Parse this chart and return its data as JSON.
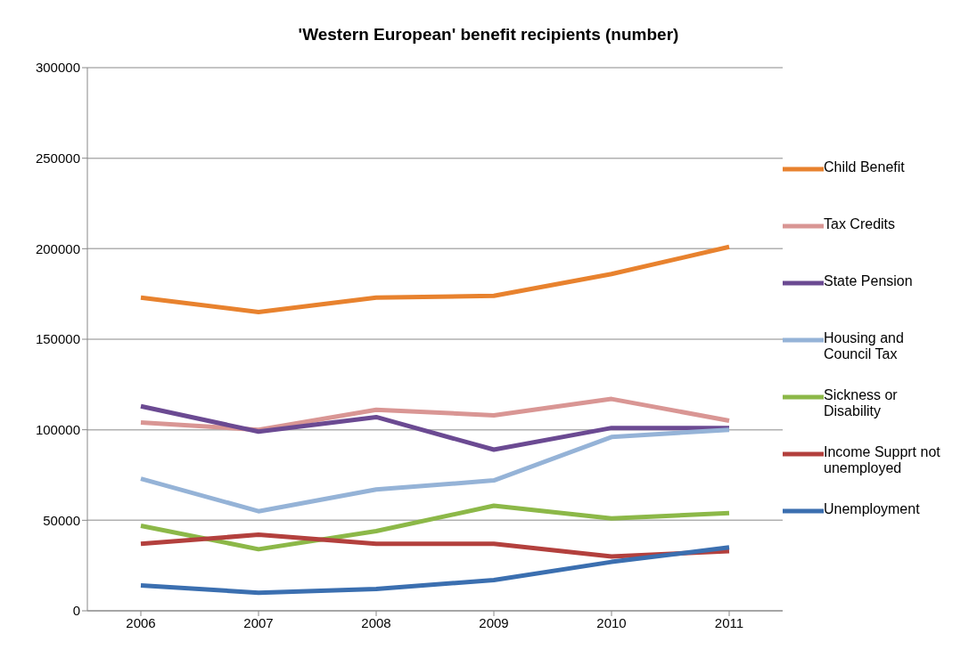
{
  "chart_data": {
    "type": "line",
    "title": "'Western European' benefit recipients (number)",
    "categories": [
      "2006",
      "2007",
      "2008",
      "2009",
      "2010",
      "2011"
    ],
    "series": [
      {
        "name": "Child Benefit",
        "color": "#e8822e",
        "values": [
          173000,
          165000,
          173000,
          174000,
          186000,
          201000
        ]
      },
      {
        "name": "Tax Credits",
        "color": "#d99694",
        "values": [
          104000,
          100000,
          111000,
          108000,
          117000,
          105000
        ]
      },
      {
        "name": "State Pension",
        "color": "#6b4a92",
        "values": [
          113000,
          99000,
          107000,
          89000,
          101000,
          101000
        ]
      },
      {
        "name": "Housing and Council Tax",
        "color": "#95b3d7",
        "values": [
          73000,
          55000,
          67000,
          72000,
          96000,
          100000
        ]
      },
      {
        "name": "Sickness or Disability",
        "color": "#8cb848",
        "values": [
          47000,
          34000,
          44000,
          58000,
          51000,
          54000
        ]
      },
      {
        "name": "Income Supprt not unemployed",
        "color": "#b3403d",
        "values": [
          37000,
          42000,
          37000,
          37000,
          30000,
          33000
        ]
      },
      {
        "name": "Unemployment",
        "color": "#3b6fb0",
        "values": [
          14000,
          10000,
          12000,
          17000,
          27000,
          35000
        ]
      }
    ],
    "ylim": [
      0,
      300000
    ],
    "yticks": [
      0,
      50000,
      100000,
      150000,
      200000,
      250000,
      300000
    ],
    "grid": "y",
    "legend": "right",
    "marker": "none",
    "line_style": "solid"
  }
}
